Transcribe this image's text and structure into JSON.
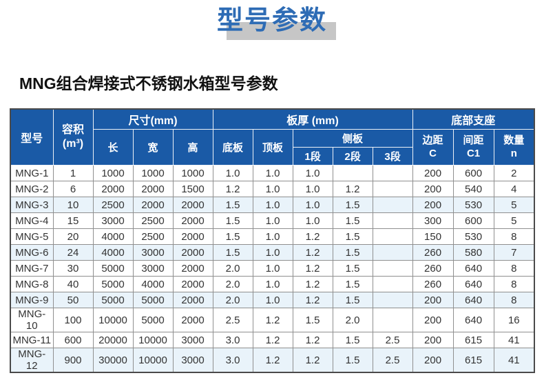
{
  "page": {
    "title": "型号参数",
    "subtitle": "MNG组合焊接式不锈钢水箱型号参数"
  },
  "colors": {
    "header_blue": "#1a5aa6",
    "title_blue": "#2e6cb5",
    "title_shadow_gray": "#c6c6c6",
    "stripe_row_blue": "#e9f3fa"
  },
  "table": {
    "header": {
      "model": "型号",
      "volume": "容积\n(m³)",
      "size_group": "尺寸(mm)",
      "length": "长",
      "width": "宽",
      "height": "高",
      "thickness_group": "板厚 (mm)",
      "bottom_plate": "底板",
      "top_plate": "顶板",
      "side_plate": "侧板",
      "seg1": "1段",
      "seg2": "2段",
      "seg3": "3段",
      "support_group": "底部支座",
      "margin_c": "边距\nC",
      "spacing_c1": "间距\nC1",
      "quantity_n": "数量\nn"
    },
    "rows": [
      [
        "MNG-1",
        "1",
        "1000",
        "1000",
        "1000",
        "1.0",
        "1.0",
        "1.0",
        "",
        "",
        "200",
        "600",
        "2"
      ],
      [
        "MNG-2",
        "6",
        "2000",
        "2000",
        "1500",
        "1.2",
        "1.0",
        "1.0",
        "1.2",
        "",
        "200",
        "540",
        "4"
      ],
      [
        "MNG-3",
        "10",
        "2500",
        "2000",
        "2000",
        "1.5",
        "1.0",
        "1.0",
        "1.5",
        "",
        "200",
        "530",
        "5"
      ],
      [
        "MNG-4",
        "15",
        "3000",
        "2500",
        "2000",
        "1.5",
        "1.0",
        "1.0",
        "1.5",
        "",
        "300",
        "600",
        "5"
      ],
      [
        "MNG-5",
        "20",
        "4000",
        "2500",
        "2000",
        "1.5",
        "1.0",
        "1.2",
        "1.5",
        "",
        "150",
        "530",
        "8"
      ],
      [
        "MNG-6",
        "24",
        "4000",
        "3000",
        "2000",
        "1.5",
        "1.0",
        "1.2",
        "1.5",
        "",
        "260",
        "580",
        "7"
      ],
      [
        "MNG-7",
        "30",
        "5000",
        "3000",
        "2000",
        "2.0",
        "1.0",
        "1.2",
        "1.5",
        "",
        "260",
        "640",
        "8"
      ],
      [
        "MNG-8",
        "40",
        "5000",
        "4000",
        "2000",
        "2.0",
        "1.0",
        "1.2",
        "1.5",
        "",
        "260",
        "640",
        "8"
      ],
      [
        "MNG-9",
        "50",
        "5000",
        "5000",
        "2000",
        "2.0",
        "1.0",
        "1.2",
        "1.5",
        "",
        "200",
        "640",
        "8"
      ],
      [
        "MNG-10",
        "100",
        "10000",
        "5000",
        "2000",
        "2.5",
        "1.2",
        "1.5",
        "2.0",
        "",
        "200",
        "640",
        "16"
      ],
      [
        "MNG-11",
        "600",
        "20000",
        "10000",
        "3000",
        "3.0",
        "1.2",
        "1.2",
        "1.5",
        "2.5",
        "200",
        "615",
        "41"
      ],
      [
        "MNG-12",
        "900",
        "30000",
        "10000",
        "3000",
        "3.0",
        "1.2",
        "1.2",
        "1.5",
        "2.5",
        "200",
        "615",
        "41"
      ]
    ]
  }
}
